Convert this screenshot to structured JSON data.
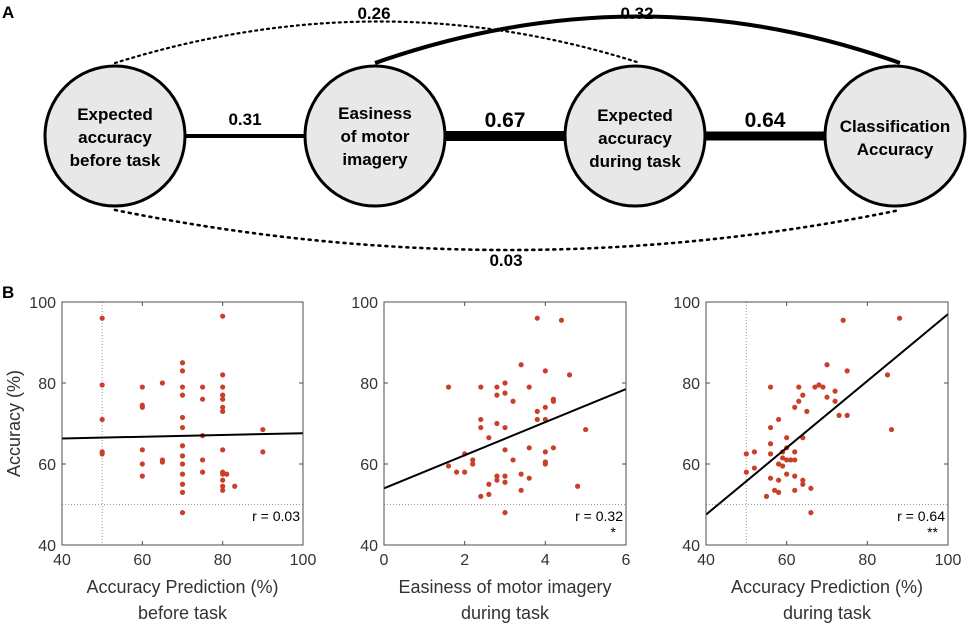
{
  "panels": {
    "a": "A",
    "b": "B"
  },
  "diagram": {
    "nodes": [
      {
        "id": "pre",
        "lines": [
          "Expected",
          "accuracy",
          "before task"
        ]
      },
      {
        "id": "ease",
        "lines": [
          "Easiness",
          "of motor",
          "imagery"
        ]
      },
      {
        "id": "during",
        "lines": [
          "Expected",
          "accuracy",
          "during task"
        ]
      },
      {
        "id": "acc",
        "lines": [
          "Classification",
          "Accuracy"
        ]
      }
    ],
    "edges": [
      {
        "from": "pre",
        "to": "ease",
        "label": "0.31",
        "style": "solid-medium"
      },
      {
        "from": "ease",
        "to": "during",
        "label": "0.67",
        "style": "solid-thick"
      },
      {
        "from": "during",
        "to": "acc",
        "label": "0.64",
        "style": "solid-thick"
      },
      {
        "from": "pre",
        "to": "during",
        "label": "0.26",
        "style": "dotted-arc-top"
      },
      {
        "from": "ease",
        "to": "acc",
        "label": "0.32",
        "style": "solid-arc-top"
      },
      {
        "from": "pre",
        "to": "acc",
        "label": "0.03",
        "style": "dotted-arc-bottom"
      }
    ],
    "colors": {
      "node_fill": "#e8e8e8",
      "node_stroke": "#000000"
    }
  },
  "chart_data": [
    {
      "type": "scatter",
      "xlabel": [
        "Accuracy Prediction (%)",
        "before task"
      ],
      "ylabel": "Accuracy (%)",
      "xlim": [
        40,
        100
      ],
      "ylim": [
        40,
        100
      ],
      "xticks": [
        40,
        60,
        80,
        100
      ],
      "yticks": [
        40,
        60,
        80,
        100
      ],
      "chance_x": 50,
      "chance_y": 50,
      "fit": {
        "x": [
          40,
          100
        ],
        "y": [
          66.3,
          67.6
        ]
      },
      "r_label": "r = 0.03",
      "sig": "",
      "points": [
        [
          50,
          96
        ],
        [
          50,
          79.5
        ],
        [
          50,
          71
        ],
        [
          50,
          63
        ],
        [
          50,
          62.5
        ],
        [
          60,
          79
        ],
        [
          60,
          74.5
        ],
        [
          60,
          74
        ],
        [
          60,
          63.5
        ],
        [
          60,
          60
        ],
        [
          60,
          57
        ],
        [
          65,
          80
        ],
        [
          65,
          61
        ],
        [
          65,
          60.5
        ],
        [
          70,
          85
        ],
        [
          70,
          83
        ],
        [
          70,
          79
        ],
        [
          70,
          77
        ],
        [
          70,
          71.5
        ],
        [
          70,
          69
        ],
        [
          70,
          64.5
        ],
        [
          70,
          62
        ],
        [
          70,
          60
        ],
        [
          70,
          57.5
        ],
        [
          70,
          55
        ],
        [
          70,
          53
        ],
        [
          70,
          48
        ],
        [
          75,
          79
        ],
        [
          75,
          76
        ],
        [
          75,
          67
        ],
        [
          75,
          61
        ],
        [
          75,
          58
        ],
        [
          80,
          96.5
        ],
        [
          80,
          82
        ],
        [
          80,
          79
        ],
        [
          80,
          77
        ],
        [
          80,
          76
        ],
        [
          80,
          74
        ],
        [
          80,
          73
        ],
        [
          80,
          63.5
        ],
        [
          80,
          58
        ],
        [
          80,
          57.5
        ],
        [
          80,
          56
        ],
        [
          80,
          54.5
        ],
        [
          80,
          53.5
        ],
        [
          81,
          57.5
        ],
        [
          83,
          54.5
        ],
        [
          90,
          68.5
        ],
        [
          90,
          63
        ]
      ]
    },
    {
      "type": "scatter",
      "xlabel": [
        "Easiness of motor imagery",
        "during task"
      ],
      "ylabel": "",
      "xlim": [
        0,
        6
      ],
      "ylim": [
        40,
        100
      ],
      "xticks": [
        0,
        2,
        4,
        6
      ],
      "yticks": [
        40,
        60,
        80,
        100
      ],
      "chance_x": null,
      "chance_y": 50,
      "fit": {
        "x": [
          0,
          6
        ],
        "y": [
          54,
          78.5
        ]
      },
      "r_label": "r = 0.32",
      "sig": "*",
      "points": [
        [
          1.6,
          79
        ],
        [
          1.6,
          59.5
        ],
        [
          1.8,
          58
        ],
        [
          2.0,
          62.5
        ],
        [
          2.0,
          58
        ],
        [
          2.2,
          61
        ],
        [
          2.2,
          60
        ],
        [
          2.4,
          79
        ],
        [
          2.4,
          71
        ],
        [
          2.4,
          69
        ],
        [
          2.4,
          52
        ],
        [
          2.6,
          66.5
        ],
        [
          2.6,
          55
        ],
        [
          2.6,
          52.5
        ],
        [
          2.8,
          79
        ],
        [
          2.8,
          77
        ],
        [
          2.8,
          70
        ],
        [
          2.8,
          57
        ],
        [
          2.8,
          56
        ],
        [
          3.0,
          80
        ],
        [
          3.0,
          77.5
        ],
        [
          3.0,
          69
        ],
        [
          3.0,
          63.5
        ],
        [
          3.0,
          57
        ],
        [
          3.0,
          55.5
        ],
        [
          3.0,
          48
        ],
        [
          3.2,
          75.5
        ],
        [
          3.2,
          61
        ],
        [
          3.4,
          84.5
        ],
        [
          3.4,
          57.5
        ],
        [
          3.4,
          53.5
        ],
        [
          3.6,
          79
        ],
        [
          3.6,
          64
        ],
        [
          3.6,
          56.5
        ],
        [
          3.8,
          96
        ],
        [
          3.8,
          73
        ],
        [
          3.8,
          71
        ],
        [
          4.0,
          83
        ],
        [
          4.0,
          74
        ],
        [
          4.0,
          71
        ],
        [
          4.0,
          63
        ],
        [
          4.0,
          60.5
        ],
        [
          4.0,
          60
        ],
        [
          4.2,
          76
        ],
        [
          4.2,
          75.5
        ],
        [
          4.2,
          64
        ],
        [
          4.4,
          95.5
        ],
        [
          4.6,
          82
        ],
        [
          4.8,
          54.5
        ],
        [
          5.0,
          68.5
        ]
      ]
    },
    {
      "type": "scatter",
      "xlabel": [
        "Accuracy Prediction (%)",
        "during task"
      ],
      "ylabel": "",
      "xlim": [
        40,
        100
      ],
      "ylim": [
        40,
        100
      ],
      "xticks": [
        40,
        60,
        80,
        100
      ],
      "yticks": [
        40,
        60,
        80,
        100
      ],
      "chance_x": 50,
      "chance_y": 50,
      "fit": {
        "x": [
          40,
          100
        ],
        "y": [
          47.5,
          97
        ]
      },
      "r_label": "r = 0.64",
      "sig": "**",
      "points": [
        [
          50,
          62.5
        ],
        [
          50,
          58
        ],
        [
          52,
          63
        ],
        [
          52,
          59
        ],
        [
          55,
          52
        ],
        [
          56,
          79
        ],
        [
          56,
          69
        ],
        [
          56,
          65
        ],
        [
          56,
          62.5
        ],
        [
          56,
          56.5
        ],
        [
          57,
          53.5
        ],
        [
          58,
          71
        ],
        [
          58,
          60
        ],
        [
          58,
          56
        ],
        [
          58,
          53
        ],
        [
          59,
          63
        ],
        [
          59,
          61.5
        ],
        [
          59,
          59.5
        ],
        [
          60,
          66.5
        ],
        [
          60,
          64
        ],
        [
          60,
          61
        ],
        [
          60,
          57.5
        ],
        [
          61,
          61
        ],
        [
          62,
          74
        ],
        [
          62,
          63
        ],
        [
          62,
          61
        ],
        [
          62,
          57
        ],
        [
          62,
          53.5
        ],
        [
          63,
          75.5
        ],
        [
          63,
          79
        ],
        [
          64,
          77
        ],
        [
          64,
          66.5
        ],
        [
          64,
          56
        ],
        [
          64,
          55
        ],
        [
          65,
          73
        ],
        [
          66,
          54
        ],
        [
          66,
          48
        ],
        [
          67,
          79
        ],
        [
          68,
          79.5
        ],
        [
          69,
          79
        ],
        [
          70,
          76.5
        ],
        [
          70,
          84.5
        ],
        [
          72,
          78
        ],
        [
          72,
          75.5
        ],
        [
          73,
          72
        ],
        [
          74,
          95.5
        ],
        [
          75,
          83
        ],
        [
          75,
          72
        ],
        [
          85,
          82
        ],
        [
          86,
          68.5
        ],
        [
          88,
          96
        ]
      ]
    }
  ],
  "colors": {
    "point": "#c9402a",
    "fit": "#000000",
    "guide": "#9a9a9a",
    "axis_box": "#4d4d4d"
  }
}
